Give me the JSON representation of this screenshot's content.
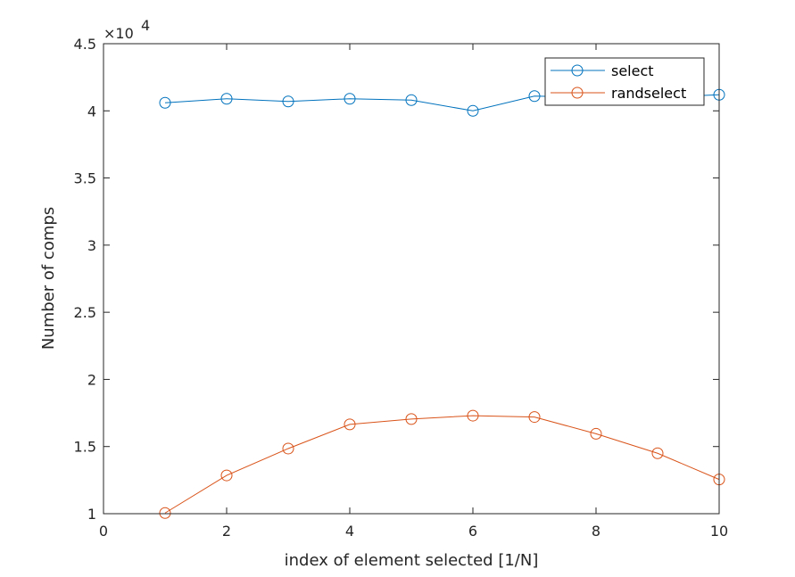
{
  "chart_data": {
    "type": "line",
    "xlabel": "index of element selected [1/N]",
    "ylabel": "Number of comps",
    "y_exponent_label": "×10",
    "y_exponent_power": "4",
    "xlim": [
      0,
      10
    ],
    "ylim": [
      10000,
      45000
    ],
    "x_ticks": [
      0,
      2,
      4,
      6,
      8,
      10
    ],
    "x_tick_labels": [
      "0",
      "2",
      "4",
      "6",
      "8",
      "10"
    ],
    "y_ticks": [
      10000,
      15000,
      20000,
      25000,
      30000,
      35000,
      40000,
      45000
    ],
    "y_tick_labels": [
      "1",
      "1.5",
      "2",
      "2.5",
      "3",
      "3.5",
      "4",
      "4.5"
    ],
    "grid": false,
    "legend_position": "top-right",
    "x": [
      1,
      2,
      3,
      4,
      5,
      6,
      7,
      8,
      9,
      10
    ],
    "series": [
      {
        "name": "select",
        "color": "#0072bd",
        "marker": "circle",
        "values": [
          40600,
          40900,
          40700,
          40900,
          40800,
          40000,
          41100,
          41000,
          41000,
          41200
        ]
      },
      {
        "name": "randselect",
        "color": "#d95319",
        "marker": "circle",
        "values": [
          10050,
          12850,
          14850,
          16650,
          17050,
          17300,
          17200,
          15950,
          14500,
          12550
        ]
      }
    ]
  }
}
